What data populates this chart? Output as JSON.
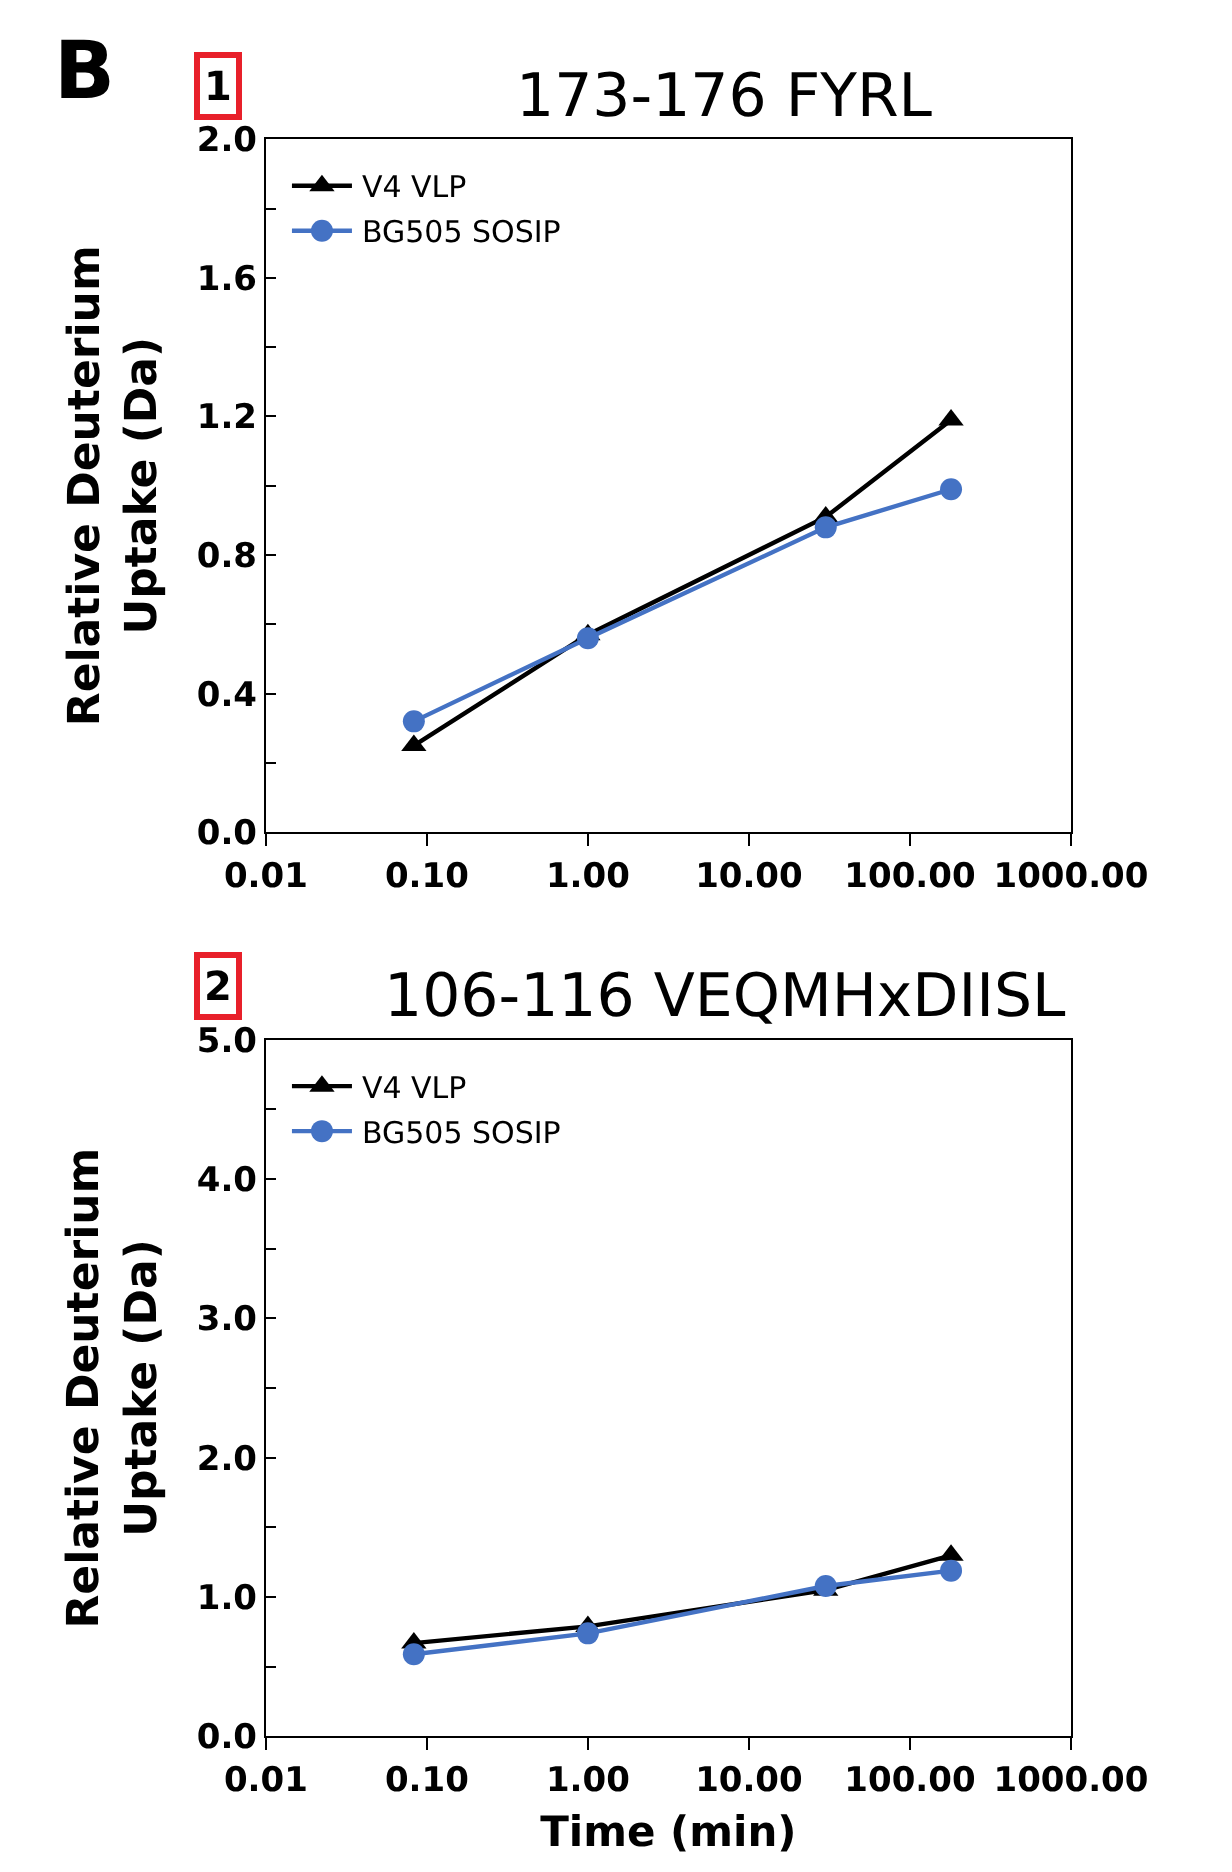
{
  "chart_data": [
    {
      "type": "line",
      "title": "173-176 FYRL",
      "ylabel": "Relative Deuterium Uptake (Da)",
      "annotations": [
        "B",
        "1"
      ],
      "log": "x",
      "xlim": [
        0.01,
        1000
      ],
      "xticks": [
        {
          "value": 0.01,
          "label": "0.01"
        },
        {
          "value": 0.1,
          "label": "0.10"
        },
        {
          "value": 1,
          "label": "1.00"
        },
        {
          "value": 10,
          "label": "10.00"
        },
        {
          "value": 100,
          "label": "100.00"
        },
        {
          "value": 1000,
          "label": "1000.00"
        }
      ],
      "ylim": [
        0,
        2
      ],
      "yticks": [
        {
          "value": 0,
          "label": "0.0"
        },
        {
          "value": 0.2,
          "label": null
        },
        {
          "value": 0.4,
          "label": "0.4"
        },
        {
          "value": 0.6,
          "label": null
        },
        {
          "value": 0.8,
          "label": "0.8"
        },
        {
          "value": 1.0,
          "label": null
        },
        {
          "value": 1.2,
          "label": "1.2"
        },
        {
          "value": 1.4,
          "label": null
        },
        {
          "value": 1.6,
          "label": "1.6"
        },
        {
          "value": 1.8,
          "label": null
        },
        {
          "value": 2.0,
          "label": "2.0"
        }
      ],
      "legend": "top left",
      "x": [
        0.083,
        1,
        30,
        180
      ],
      "series": [
        {
          "name": "V4 VLP",
          "color": "#000000",
          "marker": "triangle",
          "values": [
            0.25,
            0.57,
            0.91,
            1.19
          ]
        },
        {
          "name": "BG505 SOSIP",
          "color": "#4472c4",
          "marker": "circle",
          "values": [
            0.32,
            0.56,
            0.88,
            0.99
          ]
        }
      ]
    },
    {
      "type": "line",
      "title": "106-116 VEQMHxDIISL",
      "xlabel": "Time (min)",
      "ylabel": "Relative Deuterium Uptake (Da)",
      "annotations": [
        "2"
      ],
      "log": "x",
      "xlim": [
        0.01,
        1000
      ],
      "xticks": [
        {
          "value": 0.01,
          "label": "0.01"
        },
        {
          "value": 0.1,
          "label": "0.10"
        },
        {
          "value": 1,
          "label": "1.00"
        },
        {
          "value": 10,
          "label": "10.00"
        },
        {
          "value": 100,
          "label": "100.00"
        },
        {
          "value": 1000,
          "label": "1000.00"
        }
      ],
      "ylim": [
        0,
        5
      ],
      "yticks": [
        {
          "value": 0,
          "label": "0.0"
        },
        {
          "value": 0.5,
          "label": null
        },
        {
          "value": 1.0,
          "label": "1.0"
        },
        {
          "value": 1.5,
          "label": null
        },
        {
          "value": 2.0,
          "label": "2.0"
        },
        {
          "value": 2.5,
          "label": null
        },
        {
          "value": 3.0,
          "label": "3.0"
        },
        {
          "value": 3.5,
          "label": null
        },
        {
          "value": 4.0,
          "label": "4.0"
        },
        {
          "value": 4.5,
          "label": null
        },
        {
          "value": 5.0,
          "label": "5.0"
        }
      ],
      "legend": "top left",
      "x": [
        0.083,
        1,
        30,
        180
      ],
      "series": [
        {
          "name": "V4 VLP",
          "color": "#000000",
          "marker": "triangle",
          "values": [
            0.67,
            0.79,
            1.05,
            1.3
          ]
        },
        {
          "name": "BG505 SOSIP",
          "color": "#4472c4",
          "marker": "circle",
          "values": [
            0.59,
            0.74,
            1.08,
            1.19
          ]
        }
      ]
    }
  ]
}
